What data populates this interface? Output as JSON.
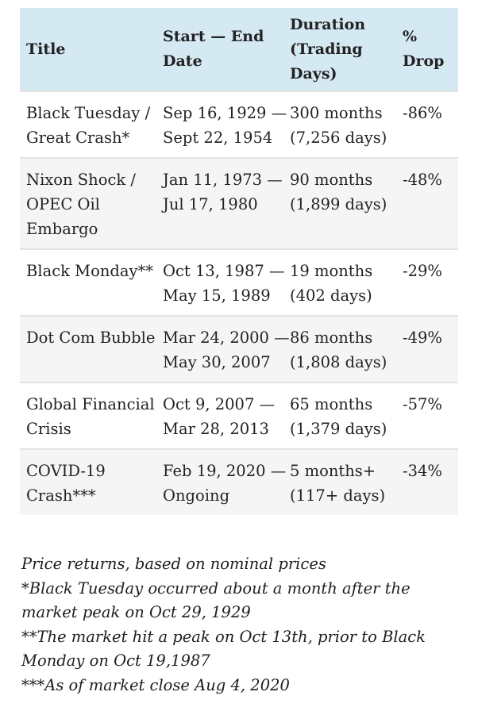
{
  "table": {
    "headers": [
      "Title",
      "Start — End Date",
      "Duration (Trading Days)",
      "% Drop"
    ],
    "rows": [
      {
        "title": "Black Tuesday / Great Crash*",
        "dates": "Sep 16, 1929 — Sept 22, 1954",
        "duration": "300 months (7,256 days)",
        "drop": "-86%"
      },
      {
        "title": "Nixon Shock / OPEC Oil Embargo",
        "dates": "Jan 11, 1973 — Jul 17, 1980",
        "duration": "90 months (1,899 days)",
        "drop": "-48%"
      },
      {
        "title": "Black Monday**",
        "dates": "Oct 13, 1987 — May 15, 1989",
        "duration": "19 months (402 days)",
        "drop": "-29%"
      },
      {
        "title": "Dot Com Bubble",
        "dates": "Mar 24, 2000 — May 30, 2007",
        "duration": "86 months (1,808 days)",
        "drop": "-49%"
      },
      {
        "title": "Global Financial Crisis",
        "dates": "Oct 9, 2007 — Mar 28, 2013",
        "duration": "65 months (1,379 days)",
        "drop": "-57%"
      },
      {
        "title": "COVID-19 Crash***",
        "dates": "Feb 19, 2020 — Ongoing",
        "duration": "5 months+ (117+ days)",
        "drop": "-34%"
      }
    ]
  },
  "notes": [
    "Price returns, based on nominal prices",
    "*Black Tuesday occurred about a month after the market peak on Oct 29, 1929",
    "**The market hit a peak on Oct 13th, prior to Black Monday on Oct 19,1987",
    "***As of market close Aug 4, 2020"
  ],
  "colors": {
    "header_bg": "#d5e9f3",
    "row_alt_bg": "#f5f5f5",
    "divider": "#e3e3e3",
    "text": "#222222"
  }
}
